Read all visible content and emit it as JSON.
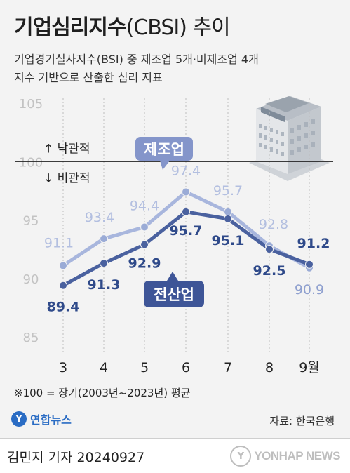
{
  "header": {
    "title": "기업심리지수",
    "title_paren": "(CBSI)",
    "title_tail": " 추이",
    "subtitle_line1": "기업경기실사지수(BSI) 중 제조업 5개·비제조업 4개",
    "subtitle_line2": "지수 기반으로 산출한 심리 지표"
  },
  "chart_data": {
    "type": "line",
    "categories": [
      "3",
      "4",
      "5",
      "6",
      "7",
      "8",
      "9월"
    ],
    "series": [
      {
        "name": "제조업",
        "values": [
          91.1,
          93.4,
          94.4,
          97.4,
          95.7,
          92.8,
          90.9
        ],
        "color": "#9aabd6"
      },
      {
        "name": "전산업",
        "values": [
          89.4,
          91.3,
          92.9,
          95.7,
          95.1,
          92.5,
          91.2
        ],
        "color": "#4a619f"
      }
    ],
    "y_ticks": [
      "105",
      "100",
      "95",
      "90",
      "85"
    ],
    "ylim": [
      85,
      105
    ],
    "reference_line": {
      "value": 100,
      "above_label": "↑ 낙관적",
      "below_label": "↓ 비관적"
    },
    "grid": "vertical dotted"
  },
  "note": "※100 = 장기(2003년~2023년) 평균",
  "logo": {
    "mark": "Y",
    "text": "연합뉴스"
  },
  "source": "자료: 한국은행",
  "footer": {
    "byline": "김민지 기자  20240927",
    "watermark_mark": "Y",
    "watermark_text": "YONHAP NEWS"
  }
}
